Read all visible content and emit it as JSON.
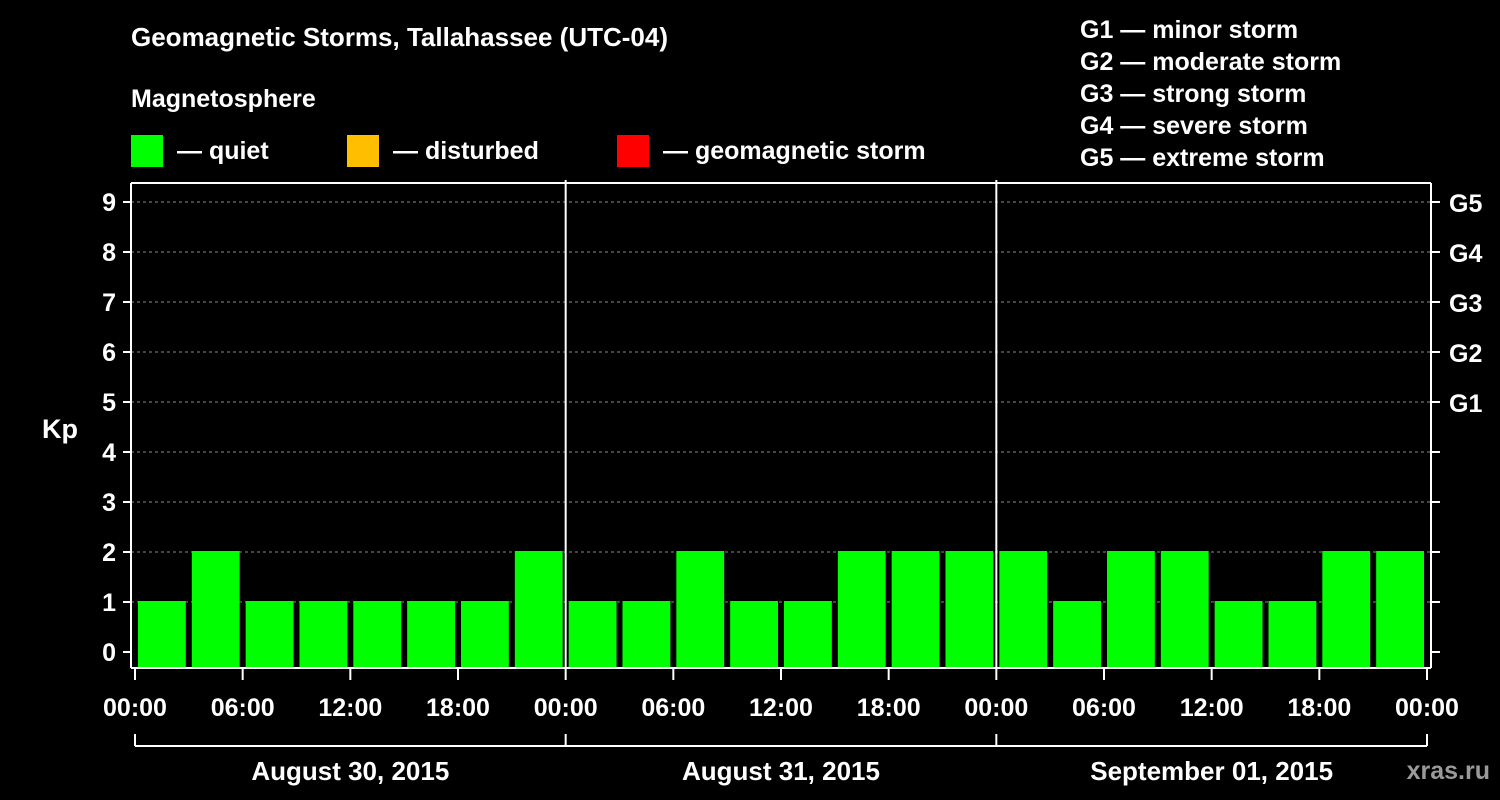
{
  "header": {
    "title": "Geomagnetic Storms, Tallahassee (UTC-04)",
    "subtitle": "Magnetosphere"
  },
  "legend": [
    {
      "label": "— quiet",
      "color": "#00ff00"
    },
    {
      "label": "— disturbed",
      "color": "#ffbf00"
    },
    {
      "label": "— geomagnetic storm",
      "color": "#ff0000"
    }
  ],
  "storm_scale": [
    "G1 — minor storm",
    "G2 — moderate storm",
    "G3 — strong storm",
    "G4 — severe storm",
    "G5 — extreme storm"
  ],
  "watermark": "xras.ru",
  "chart_data": {
    "type": "bar",
    "ylabel": "Kp",
    "ylim": [
      0,
      9
    ],
    "y_ticks": [
      0,
      1,
      2,
      3,
      4,
      5,
      6,
      7,
      8,
      9
    ],
    "right_ticks": [
      {
        "label": "G1",
        "value": 5
      },
      {
        "label": "G2",
        "value": 6
      },
      {
        "label": "G3",
        "value": 7
      },
      {
        "label": "G4",
        "value": 8
      },
      {
        "label": "G5",
        "value": 9
      }
    ],
    "grid": true,
    "x_tick_labels": [
      "00:00",
      "06:00",
      "12:00",
      "18:00",
      "00:00",
      "06:00",
      "12:00",
      "18:00",
      "00:00",
      "06:00",
      "12:00",
      "18:00",
      "00:00"
    ],
    "days": [
      "August 30, 2015",
      "August 31, 2015",
      "September 01, 2015"
    ],
    "bar_color": "#00ff00",
    "categories": [
      "Aug 30 00:00",
      "Aug 30 03:00",
      "Aug 30 06:00",
      "Aug 30 09:00",
      "Aug 30 12:00",
      "Aug 30 15:00",
      "Aug 30 18:00",
      "Aug 30 21:00",
      "Aug 31 00:00",
      "Aug 31 03:00",
      "Aug 31 06:00",
      "Aug 31 09:00",
      "Aug 31 12:00",
      "Aug 31 15:00",
      "Aug 31 18:00",
      "Aug 31 21:00",
      "Sep 01 00:00",
      "Sep 01 03:00",
      "Sep 01 06:00",
      "Sep 01 09:00",
      "Sep 01 12:00",
      "Sep 01 15:00",
      "Sep 01 18:00",
      "Sep 01 21:00"
    ],
    "values": [
      1,
      2,
      1,
      1,
      1,
      1,
      1,
      2,
      1,
      1,
      2,
      1,
      1,
      2,
      2,
      2,
      2,
      1,
      2,
      2,
      1,
      1,
      2,
      2
    ]
  }
}
